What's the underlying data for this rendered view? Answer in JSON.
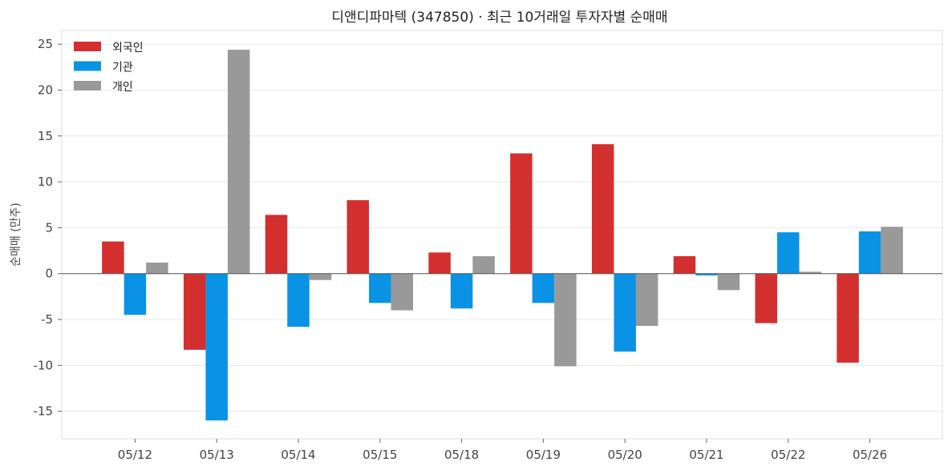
{
  "chart_data": {
    "type": "bar",
    "title": "디앤디파마텍 (347850) · 최근 10거래일 투자자별 순매매",
    "xlabel": "",
    "ylabel": "순매매 (만주)",
    "categories": [
      "05/12",
      "05/13",
      "05/14",
      "05/15",
      "05/18",
      "05/19",
      "05/20",
      "05/21",
      "05/22",
      "05/26"
    ],
    "series": [
      {
        "name": "외국인",
        "color": "#d32f2f",
        "values": [
          3.5,
          -8.3,
          6.4,
          8.0,
          2.3,
          13.1,
          14.1,
          1.9,
          -5.4,
          -9.7
        ]
      },
      {
        "name": "기관",
        "color": "#0a93e4",
        "values": [
          -4.5,
          -16.0,
          -5.8,
          -3.2,
          -3.8,
          -3.2,
          -8.5,
          -0.2,
          4.5,
          4.6
        ]
      },
      {
        "name": "개인",
        "color": "#999999",
        "values": [
          1.2,
          24.4,
          -0.7,
          -4.0,
          1.9,
          -10.1,
          -5.7,
          -1.8,
          0.2,
          5.1
        ]
      }
    ],
    "ylim": [
      -18,
      26.5
    ],
    "yticks": [
      -15,
      -10,
      -5,
      0,
      5,
      10,
      15,
      20,
      25
    ],
    "grid": true,
    "legend_position": "top-left"
  }
}
